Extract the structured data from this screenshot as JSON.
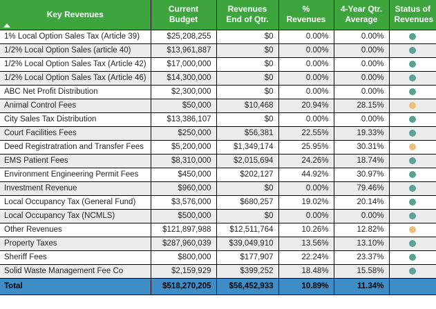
{
  "chart_data": {
    "type": "table",
    "title": "Key Revenues",
    "sort": {
      "column": "Key Revenues",
      "direction": "ascending"
    },
    "columns": [
      {
        "key": "name",
        "label": "Key Revenues",
        "align": "left"
      },
      {
        "key": "current_budget",
        "label": "Current Budget",
        "align": "right"
      },
      {
        "key": "revenues_end_of_qtr",
        "label": "Revenues End of Qtr.",
        "align": "right"
      },
      {
        "key": "pct_revenues",
        "label": "% Revenues",
        "align": "right"
      },
      {
        "key": "four_year_qtr_average",
        "label": "4-Year Qtr. Average",
        "align": "right"
      },
      {
        "key": "status",
        "label": "Status of Revenues",
        "align": "center"
      }
    ],
    "rows": [
      {
        "name": "1% Local Option Sales Tax (Article 39)",
        "current_budget": "$25,208,255",
        "revenues_end_of_qtr": "$0",
        "pct_revenues": "0.00%",
        "four_year_qtr_average": "0.00%",
        "status": "green"
      },
      {
        "name": "1/2% Local Option Sales (article 40)",
        "current_budget": "$13,961,887",
        "revenues_end_of_qtr": "$0",
        "pct_revenues": "0.00%",
        "four_year_qtr_average": "0.00%",
        "status": "green"
      },
      {
        "name": "1/2% Local Option Sales Tax (Article 42)",
        "current_budget": "$17,000,000",
        "revenues_end_of_qtr": "$0",
        "pct_revenues": "0.00%",
        "four_year_qtr_average": "0.00%",
        "status": "green"
      },
      {
        "name": "1/2% Local Option Sales Tax (Article 46)",
        "current_budget": "$14,300,000",
        "revenues_end_of_qtr": "$0",
        "pct_revenues": "0.00%",
        "four_year_qtr_average": "0.00%",
        "status": "green"
      },
      {
        "name": "ABC Net Profit Distribution",
        "current_budget": "$2,300,000",
        "revenues_end_of_qtr": "$0",
        "pct_revenues": "0.00%",
        "four_year_qtr_average": "0.00%",
        "status": "green"
      },
      {
        "name": "Animal Control Fees",
        "current_budget": "$50,000",
        "revenues_end_of_qtr": "$10,468",
        "pct_revenues": "20.94%",
        "four_year_qtr_average": "28.15%",
        "status": "yellow"
      },
      {
        "name": "City Sales Tax Distribution",
        "current_budget": "$13,386,107",
        "revenues_end_of_qtr": "$0",
        "pct_revenues": "0.00%",
        "four_year_qtr_average": "0.00%",
        "status": "green"
      },
      {
        "name": "Court Facilities Fees",
        "current_budget": "$250,000",
        "revenues_end_of_qtr": "$56,381",
        "pct_revenues": "22.55%",
        "four_year_qtr_average": "19.33%",
        "status": "green"
      },
      {
        "name": "Deed Registratration and Transfer Fees",
        "current_budget": "$5,200,000",
        "revenues_end_of_qtr": "$1,349,174",
        "pct_revenues": "25.95%",
        "four_year_qtr_average": "30.31%",
        "status": "yellow"
      },
      {
        "name": "EMS Patient Fees",
        "current_budget": "$8,310,000",
        "revenues_end_of_qtr": "$2,015,694",
        "pct_revenues": "24.26%",
        "four_year_qtr_average": "18.74%",
        "status": "green"
      },
      {
        "name": "Environment Engineering Permit Fees",
        "current_budget": "$450,000",
        "revenues_end_of_qtr": "$202,127",
        "pct_revenues": "44.92%",
        "four_year_qtr_average": "30.97%",
        "status": "green"
      },
      {
        "name": "Investment Revenue",
        "current_budget": "$960,000",
        "revenues_end_of_qtr": "$0",
        "pct_revenues": "0.00%",
        "four_year_qtr_average": "79.46%",
        "status": "green"
      },
      {
        "name": "Local Occupancy Tax (General Fund)",
        "current_budget": "$3,576,000",
        "revenues_end_of_qtr": "$680,257",
        "pct_revenues": "19.02%",
        "four_year_qtr_average": "20.14%",
        "status": "green"
      },
      {
        "name": "Local Occupancy Tax (NCMLS)",
        "current_budget": "$500,000",
        "revenues_end_of_qtr": "$0",
        "pct_revenues": "0.00%",
        "four_year_qtr_average": "0.00%",
        "status": "green"
      },
      {
        "name": "Other Revenues",
        "current_budget": "$121,897,988",
        "revenues_end_of_qtr": "$12,511,764",
        "pct_revenues": "10.26%",
        "four_year_qtr_average": "12.82%",
        "status": "yellow"
      },
      {
        "name": "Property Taxes",
        "current_budget": "$287,960,039",
        "revenues_end_of_qtr": "$39,049,910",
        "pct_revenues": "13.56%",
        "four_year_qtr_average": "13.10%",
        "status": "green"
      },
      {
        "name": "Sheriff Fees",
        "current_budget": "$800,000",
        "revenues_end_of_qtr": "$177,907",
        "pct_revenues": "22.24%",
        "four_year_qtr_average": "23.37%",
        "status": "green"
      },
      {
        "name": "Solid Waste Management Fee Co",
        "current_budget": "$2,159,929",
        "revenues_end_of_qtr": "$399,252",
        "pct_revenues": "18.48%",
        "four_year_qtr_average": "15.58%",
        "status": "green"
      }
    ],
    "total_row": {
      "name": "Total",
      "current_budget": "$518,270,205",
      "revenues_end_of_qtr": "$56,452,933",
      "pct_revenues": "10.89%",
      "four_year_qtr_average": "11.34%"
    },
    "status_legend": {
      "green": "#57A294",
      "yellow": "#EBC17E"
    },
    "colors": {
      "header_bg": "#3EA53E",
      "header_text": "#FFFFFF",
      "total_bg": "#3F8DC6",
      "row_alt_bg": "#ECECEC",
      "grid_line": "#000000",
      "body_text": "#252423"
    }
  }
}
